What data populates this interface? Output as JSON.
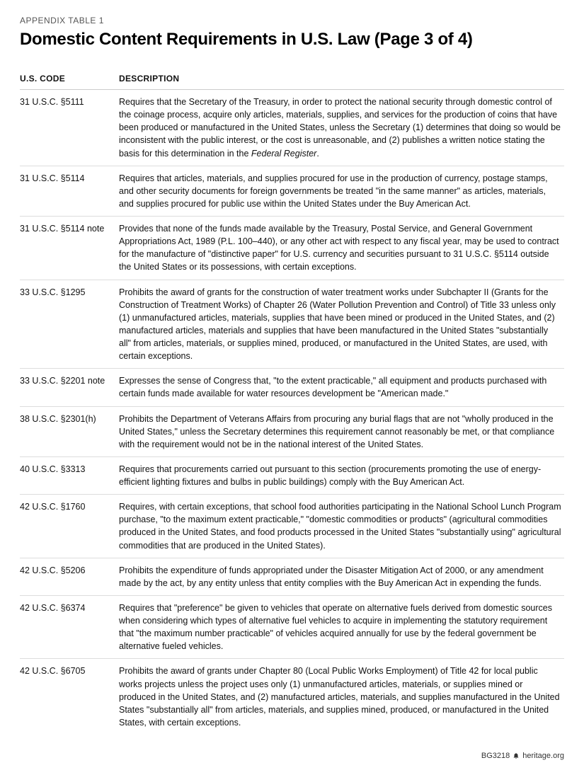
{
  "label": "APPENDIX TABLE 1",
  "title": "Domestic Content Requirements in U.S. Law (Page 3 of 4)",
  "headers": {
    "code": "U.S. CODE",
    "description": "DESCRIPTION"
  },
  "rows": [
    {
      "code": "31 U.S.C. §5111",
      "desc": "Requires that the Secretary of the Treasury, in order to protect the national security through domestic control of the coinage process, acquire only articles, materials, supplies, and services for the production of coins that have been produced or manufactured in the United States, unless the Secretary (1) determines that doing so would be inconsistent with the public interest, or the cost is unreasonable, and (2) publishes a written notice stating the basis for this determination in the <span class=\"italic\">Federal Register</span>."
    },
    {
      "code": "31 U.S.C. §5114",
      "desc": "Requires that articles, materials, and supplies procured for use in the production of currency, postage stamps, and other security documents for foreign governments be treated \"in the same manner\" as articles, materials, and supplies procured for public use within the United States under the Buy American Act."
    },
    {
      "code": "31 U.S.C. §5114 note",
      "desc": "Provides that none of the funds made available by the Treasury, Postal Service, and General Government Appropriations Act, 1989 (P.L. 100–440), or any other act with respect to any fiscal year, may be used to contract for the manufacture of \"distinctive paper\" for U.S. currency and securities pursuant to 31 U.S.C. §5114 outside the United States or its possessions, with certain exceptions."
    },
    {
      "code": "33 U.S.C. §1295",
      "desc": "Prohibits the award of grants for the construction of water treatment works under Subchapter II (Grants for the Construction of Treatment Works) of Chapter 26 (Water Pollution Prevention and Control) of Title 33 unless only (1) unmanufactured articles, materials, supplies that have been mined or produced in the United States, and (2) manufactured articles, materials and supplies that have been manufactured in the United States \"substantially all\" from articles, materials, or supplies mined, produced, or manufactured in the United States, are used, with certain exceptions."
    },
    {
      "code": "33 U.S.C. §2201 note",
      "desc": "Expresses the sense of Congress that, \"to the extent practicable,\" all equipment and products purchased with certain funds made available for water resources development be \"American made.\""
    },
    {
      "code": "38 U.S.C. §2301(h)",
      "desc": "Prohibits the Department of Veterans Affairs from procuring any burial flags that are not \"wholly produced in the United States,\" unless the Secretary determines this requirement cannot reasonably be met, or that compliance with the requirement would not be in the national interest of the United States."
    },
    {
      "code": "40 U.S.C. §3313",
      "desc": "Requires that procurements carried out pursuant to this section (procurements promoting the use of energy-efficient lighting fixtures and bulbs in public buildings) comply with the Buy American Act."
    },
    {
      "code": "42 U.S.C. §1760",
      "desc": "Requires, with certain exceptions, that school food authorities participating in the National School Lunch Program purchase, \"to the maximum extent practicable,\" \"domestic commodities or products\" (agricultural commodities produced in the United States, and food products processed in the United States \"substantially using\" agricultural commodities that are produced in the United States)."
    },
    {
      "code": "42 U.S.C. §5206",
      "desc": "Prohibits the expenditure of funds appropriated under the Disaster Mitigation Act of 2000, or any amendment made by the act, by any entity unless that entity complies with the Buy American Act in expending the funds."
    },
    {
      "code": "42 U.S.C. §6374",
      "desc": "Requires that \"preference\" be given to vehicles that operate on alternative fuels derived from domestic sources when considering which types of alternative fuel vehicles to acquire in implementing the statutory requirement that \"the maximum number practicable\" of vehicles acquired annually for use by the federal government be alternative fueled vehicles."
    },
    {
      "code": "42 U.S.C. §6705",
      "desc": "Prohibits the award of grants under Chapter 80 (Local Public Works Employment) of Title 42 for local public works projects unless the project uses only (1) unmanufactured articles, materials, or supplies mined or produced in the United States, and (2) manufactured articles, materials, and supplies manufactured in the United States \"substantially all\" from articles, materials, and supplies mined, produced, or manufactured in the United States, with certain exceptions."
    }
  ],
  "footer": {
    "ref": "BG3218",
    "site": "heritage.org"
  }
}
